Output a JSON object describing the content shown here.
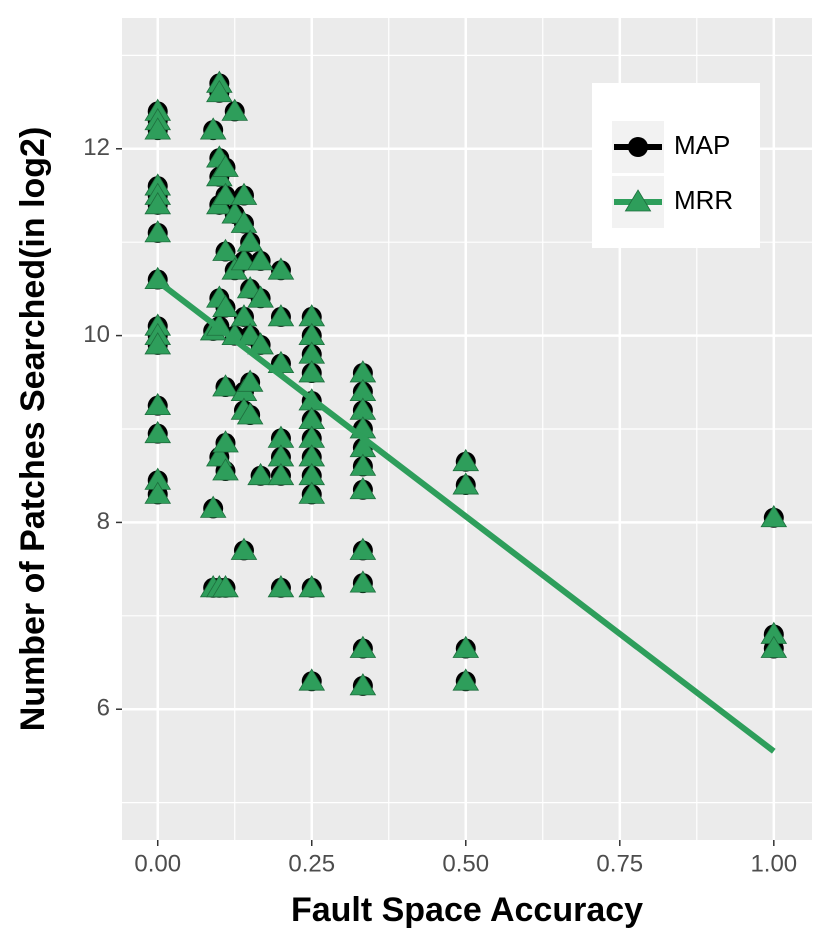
{
  "chart_data": {
    "type": "scatter",
    "x_label": "Fault Space Accuracy",
    "y_label": "Number of Patches Searched(in log2)",
    "xlim": [
      -0.058,
      1.062
    ],
    "ylim": [
      4.6,
      13.4
    ],
    "xticks": [
      {
        "value": 0,
        "label": "0.00"
      },
      {
        "value": 0.25,
        "label": "0.25"
      },
      {
        "value": 0.5,
        "label": "0.50"
      },
      {
        "value": 0.75,
        "label": "0.75"
      },
      {
        "value": 1,
        "label": "1.00"
      }
    ],
    "yticks": [
      6,
      8,
      10,
      12
    ],
    "x_minor_ticks": [
      0.125,
      0.375,
      0.625,
      0.875
    ],
    "y_minor_ticks": [
      5,
      7,
      9,
      11,
      13
    ],
    "grid": true,
    "legend_position": "top-right",
    "trend": {
      "x": [
        0,
        1
      ],
      "y": [
        10.58,
        5.55
      ],
      "color": "#2e9e5b"
    },
    "series": [
      {
        "name": "MAP",
        "color": "#000000",
        "marker": "circle",
        "x": [
          0,
          0,
          0,
          0,
          0,
          0,
          0,
          0,
          0,
          0,
          0,
          0,
          0,
          0,
          0,
          0.09,
          0.09,
          0.09,
          0.09,
          0.1,
          0.1,
          0.1,
          0.1,
          0.1,
          0.1,
          0.1,
          0.1,
          0.1,
          0.11,
          0.11,
          0.11,
          0.11,
          0.11,
          0.11,
          0.11,
          0.11,
          0.125,
          0.125,
          0.125,
          0.125,
          0.14,
          0.14,
          0.14,
          0.14,
          0.14,
          0.14,
          0.14,
          0.15,
          0.15,
          0.15,
          0.15,
          0.15,
          0.167,
          0.167,
          0.167,
          0.167,
          0.2,
          0.2,
          0.2,
          0.2,
          0.2,
          0.2,
          0.2,
          0.25,
          0.25,
          0.25,
          0.25,
          0.25,
          0.25,
          0.25,
          0.25,
          0.25,
          0.25,
          0.25,
          0.25,
          0.333,
          0.333,
          0.333,
          0.333,
          0.333,
          0.333,
          0.333,
          0.333,
          0.333,
          0.333,
          0.333,
          0.5,
          0.5,
          0.5,
          0.5,
          1,
          1,
          1
        ],
        "values": [
          12.4,
          12.3,
          12.2,
          11.6,
          11.5,
          11.4,
          11.1,
          10.6,
          10.1,
          10.0,
          9.9,
          9.25,
          8.95,
          8.45,
          8.3,
          8.15,
          7.3,
          12.2,
          10.05,
          12.7,
          12.6,
          11.9,
          11.7,
          11.4,
          10.4,
          10.1,
          8.7,
          7.3,
          11.8,
          11.5,
          10.9,
          10.3,
          9.45,
          8.85,
          8.55,
          7.3,
          12.4,
          11.3,
          10.7,
          10.0,
          11.5,
          11.2,
          10.8,
          10.2,
          9.4,
          9.2,
          7.7,
          11.0,
          10.5,
          10.0,
          9.5,
          9.15,
          10.8,
          10.4,
          9.9,
          8.5,
          10.7,
          10.2,
          9.7,
          8.9,
          8.7,
          8.5,
          7.3,
          10.2,
          10.0,
          9.8,
          9.6,
          9.3,
          9.1,
          8.9,
          8.7,
          8.5,
          8.3,
          7.3,
          6.3,
          9.6,
          9.4,
          9.2,
          9.0,
          8.8,
          8.6,
          8.35,
          7.7,
          7.35,
          6.65,
          6.25,
          8.65,
          8.4,
          6.65,
          6.3,
          8.05,
          6.8,
          6.65
        ]
      },
      {
        "name": "MRR",
        "color": "#2e9e5b",
        "marker": "triangle",
        "x": [
          0,
          0,
          0,
          0,
          0,
          0,
          0,
          0,
          0,
          0,
          0,
          0,
          0,
          0,
          0,
          0.09,
          0.09,
          0.09,
          0.09,
          0.1,
          0.1,
          0.1,
          0.1,
          0.1,
          0.1,
          0.1,
          0.1,
          0.1,
          0.11,
          0.11,
          0.11,
          0.11,
          0.11,
          0.11,
          0.11,
          0.11,
          0.125,
          0.125,
          0.125,
          0.125,
          0.14,
          0.14,
          0.14,
          0.14,
          0.14,
          0.14,
          0.14,
          0.15,
          0.15,
          0.15,
          0.15,
          0.15,
          0.167,
          0.167,
          0.167,
          0.167,
          0.2,
          0.2,
          0.2,
          0.2,
          0.2,
          0.2,
          0.2,
          0.25,
          0.25,
          0.25,
          0.25,
          0.25,
          0.25,
          0.25,
          0.25,
          0.25,
          0.25,
          0.25,
          0.25,
          0.333,
          0.333,
          0.333,
          0.333,
          0.333,
          0.333,
          0.333,
          0.333,
          0.333,
          0.333,
          0.333,
          0.5,
          0.5,
          0.5,
          0.5,
          1,
          1,
          1
        ],
        "values": [
          12.4,
          12.3,
          12.2,
          11.6,
          11.5,
          11.4,
          11.1,
          10.6,
          10.1,
          10.0,
          9.9,
          9.25,
          8.95,
          8.45,
          8.3,
          8.15,
          7.3,
          12.2,
          10.05,
          12.7,
          12.6,
          11.9,
          11.7,
          11.4,
          10.4,
          10.1,
          8.7,
          7.3,
          11.8,
          11.5,
          10.9,
          10.3,
          9.45,
          8.85,
          8.55,
          7.3,
          12.4,
          11.3,
          10.7,
          10.0,
          11.5,
          11.2,
          10.8,
          10.2,
          9.4,
          9.2,
          7.7,
          11.0,
          10.5,
          10.0,
          9.5,
          9.15,
          10.8,
          10.4,
          9.9,
          8.5,
          10.7,
          10.2,
          9.7,
          8.9,
          8.7,
          8.5,
          7.3,
          10.2,
          10.0,
          9.8,
          9.6,
          9.3,
          9.1,
          8.9,
          8.7,
          8.5,
          8.3,
          7.3,
          6.3,
          9.6,
          9.4,
          9.2,
          9.0,
          8.8,
          8.6,
          8.35,
          7.7,
          7.35,
          6.65,
          6.25,
          8.65,
          8.4,
          6.65,
          6.3,
          8.05,
          6.8,
          6.65
        ]
      }
    ]
  }
}
